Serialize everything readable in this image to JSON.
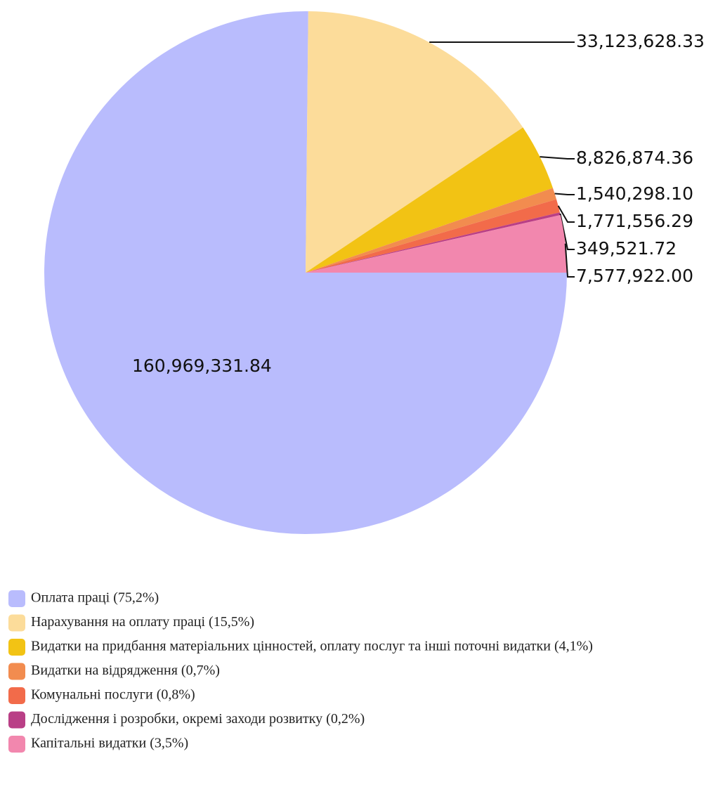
{
  "chart_data": {
    "type": "pie",
    "categories": [
      "Оплата праці (75,2%)",
      "Нарахування на оплату праці (15,5%)",
      "Видатки на придбання матеріальних цінностей, оплату послуг та інші поточні видатки (4,1%)",
      "Видатки на відрядження (0,7%)",
      "Комунальні послуги (0,8%)",
      "Дослідження і розробки, окремі заходи розвитку (0,2%)",
      "Капітальні видатки (3,5%)"
    ],
    "values": [
      160969331.84,
      33123628.33,
      8826874.36,
      1540298.1,
      1771556.29,
      349521.72,
      7577922.0
    ],
    "value_labels": [
      "160,969,331.84",
      "33,123,628.33",
      "8,826,874.36",
      "1,540,298.10",
      "1,771,556.29",
      "349,521.72",
      "7,577,922.00"
    ],
    "colors": [
      "#b9bcfd",
      "#fcdc9a",
      "#f2c314",
      "#f28c4f",
      "#f26b4a",
      "#b93f86",
      "#f287ae"
    ]
  }
}
